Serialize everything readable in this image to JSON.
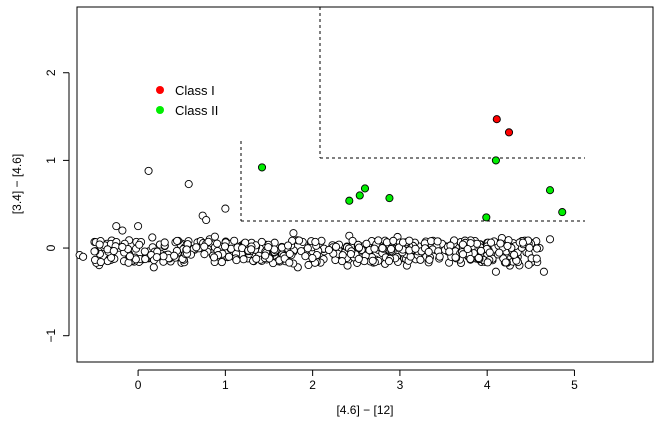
{
  "chart_data": {
    "type": "scatter",
    "title": "",
    "xlabel": "[4.6] − [12]",
    "ylabel": "[3.4] − [4.6]",
    "xlim": [
      -0.7,
      5.9
    ],
    "ylim": [
      -1.3,
      2.75
    ],
    "xticks": [
      0,
      1,
      2,
      3,
      4,
      5
    ],
    "yticks": [
      -1,
      0,
      1,
      2
    ],
    "grid": false,
    "legend": {
      "placement": "top-left",
      "entries": [
        {
          "label": "Class I",
          "color": "#ff0000"
        },
        {
          "label": "Class II",
          "color": "#00ee00"
        }
      ]
    },
    "colors": {
      "class_i": "#ff0000",
      "class_ii": "#00ee00",
      "field": "#ffffff",
      "outline": "#000000"
    },
    "series": [
      {
        "name": "Class I",
        "points": [
          [
            4.11,
            1.47
          ],
          [
            4.25,
            1.32
          ]
        ]
      },
      {
        "name": "Class II",
        "points": [
          [
            1.42,
            0.92
          ],
          [
            2.42,
            0.54
          ],
          [
            2.54,
            0.6
          ],
          [
            2.6,
            0.68
          ],
          [
            2.88,
            0.57
          ],
          [
            3.99,
            0.35
          ],
          [
            4.1,
            1.0
          ],
          [
            4.72,
            0.66
          ],
          [
            4.86,
            0.41
          ]
        ]
      },
      {
        "name": "",
        "points": [
          [
            -0.67,
            -0.08
          ],
          [
            -0.63,
            -0.1
          ],
          [
            0.12,
            0.88
          ],
          [
            0.58,
            0.73
          ],
          [
            -0.25,
            0.25
          ],
          [
            -0.18,
            0.2
          ],
          [
            0.0,
            0.25
          ],
          [
            0.74,
            0.37
          ],
          [
            0.78,
            0.32
          ],
          [
            1.0,
            0.45
          ],
          [
            0.82,
            0.1
          ],
          [
            0.88,
            0.13
          ],
          [
            0.7,
            0.07
          ],
          [
            1.78,
            0.17
          ],
          [
            2.42,
            0.14
          ],
          [
            -0.02,
            0.07
          ],
          [
            0.25,
            0.04
          ],
          [
            0.5,
            0.05
          ],
          [
            1.3,
            0.06
          ],
          [
            1.98,
            0.06
          ],
          [
            2.7,
            0.07
          ],
          [
            3.35,
            0.07
          ],
          [
            4.0,
            0.06
          ],
          [
            4.4,
            0.08
          ],
          [
            4.5,
            0.06
          ],
          [
            4.55,
            0.05
          ],
          [
            4.72,
            0.1
          ],
          [
            4.1,
            -0.27
          ],
          [
            4.65,
            -0.27
          ],
          [
            1.83,
            -0.22
          ],
          [
            0.18,
            -0.22
          ],
          [
            2.4,
            -0.2
          ],
          [
            3.08,
            -0.2
          ],
          [
            3.7,
            -0.17
          ],
          [
            4.26,
            -0.2
          ],
          [
            0.95,
            -0.15
          ],
          [
            2.83,
            -0.18
          ],
          [
            3.25,
            -0.06
          ],
          [
            3.3,
            -0.1
          ],
          [
            3.4,
            -0.02
          ],
          [
            3.45,
            -0.12
          ],
          [
            3.55,
            -0.04
          ],
          [
            3.6,
            -0.08
          ],
          [
            3.75,
            -0.03
          ],
          [
            3.85,
            -0.1
          ],
          [
            3.95,
            -0.05
          ],
          [
            4.03,
            -0.12
          ],
          [
            4.18,
            -0.03
          ],
          [
            4.2,
            -0.08
          ],
          [
            4.35,
            -0.1
          ],
          [
            4.3,
            0.02
          ],
          [
            4.45,
            -0.05
          ],
          [
            4.6,
            0.0
          ],
          [
            2.0,
            -0.04
          ],
          [
            2.1,
            -0.09
          ],
          [
            2.2,
            -0.02
          ],
          [
            2.3,
            -0.1
          ],
          [
            2.45,
            -0.04
          ],
          [
            2.55,
            -0.11
          ],
          [
            2.65,
            -0.06
          ],
          [
            2.75,
            -0.02
          ],
          [
            2.85,
            -0.09
          ],
          [
            2.95,
            -0.05
          ],
          [
            3.05,
            -0.12
          ],
          [
            3.15,
            -0.03
          ]
        ]
      }
    ]
  }
}
